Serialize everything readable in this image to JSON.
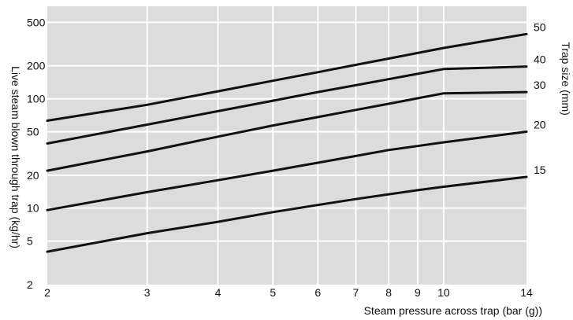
{
  "chart_data": {
    "type": "line",
    "xlabel": "Steam pressure across trap (bar (g))",
    "ylabel": "Live steam blown through trap (kg/hr)",
    "y2label": "Trap size (mm)",
    "x_scale": "log",
    "y_scale": "log",
    "xlim": [
      2,
      14
    ],
    "ylim": [
      2,
      700
    ],
    "grid": true,
    "x_ticks": [
      2,
      3,
      4,
      5,
      6,
      7,
      8,
      9,
      10,
      14
    ],
    "y_ticks": [
      2,
      5,
      10,
      20,
      50,
      100,
      200,
      500
    ],
    "series": [
      {
        "name": "50",
        "x": [
          2,
          3,
          4,
          5,
          6,
          7,
          8,
          9,
          10,
          14
        ],
        "values": [
          63,
          88,
          117,
          146,
          175,
          204,
          233,
          262,
          291,
          390
        ]
      },
      {
        "name": "40",
        "x": [
          2,
          3,
          4,
          5,
          6,
          7,
          8,
          9,
          10,
          14
        ],
        "values": [
          39,
          58,
          77,
          96,
          115,
          133,
          151,
          169,
          187,
          197
        ]
      },
      {
        "name": "30",
        "x": [
          2,
          3,
          4,
          5,
          6,
          7,
          8,
          9,
          10,
          14
        ],
        "values": [
          22,
          33,
          45,
          57,
          68,
          79,
          90,
          101,
          112,
          115
        ]
      },
      {
        "name": "20",
        "x": [
          2,
          3,
          4,
          5,
          6,
          7,
          8,
          9,
          10,
          14
        ],
        "values": [
          9.6,
          14,
          18,
          22,
          26,
          30,
          34,
          37,
          40,
          50
        ]
      },
      {
        "name": "15",
        "x": [
          2,
          3,
          4,
          5,
          6,
          7,
          8,
          9,
          10,
          14
        ],
        "values": [
          4,
          5.9,
          7.5,
          9.2,
          10.7,
          12.1,
          13.4,
          14.6,
          15.7,
          19.3
        ]
      }
    ]
  }
}
